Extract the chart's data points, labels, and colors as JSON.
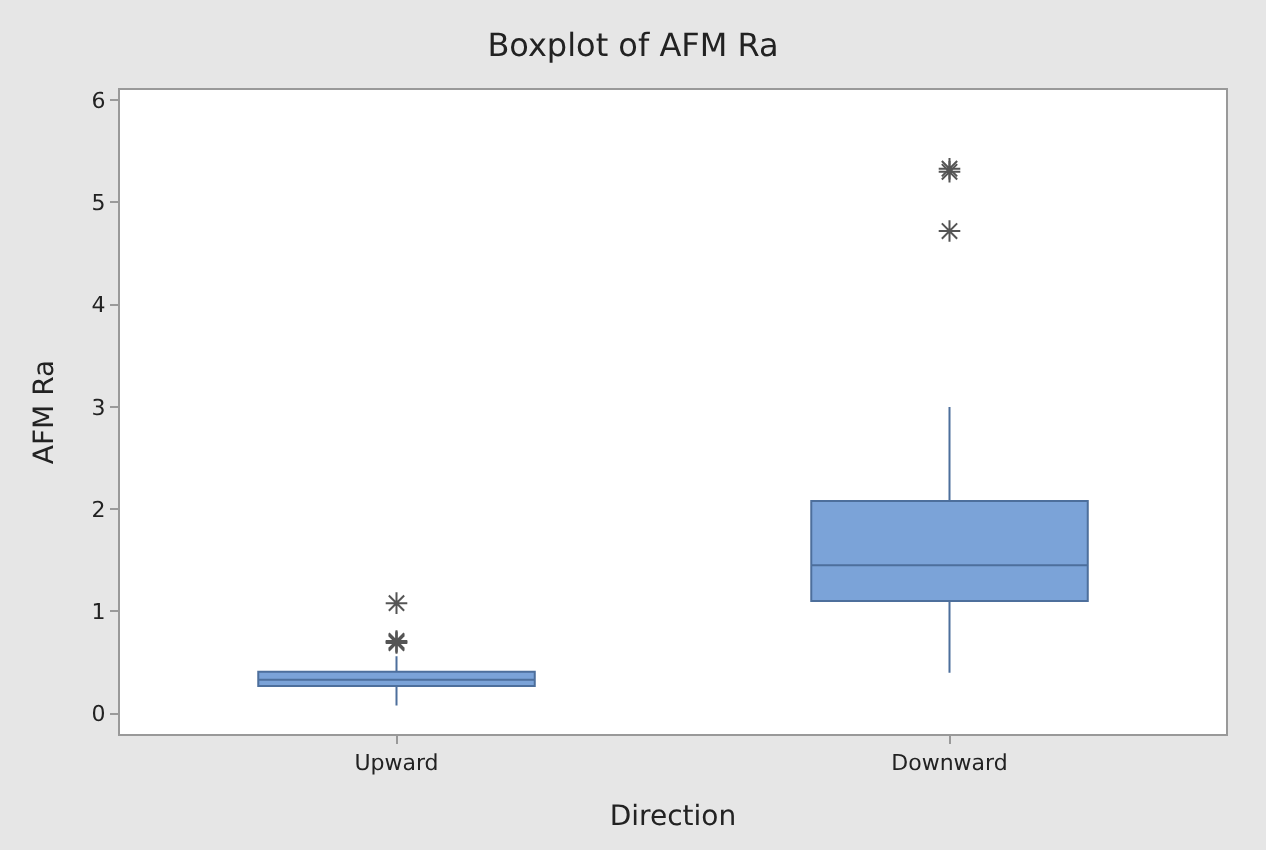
{
  "chart_data": {
    "type": "box",
    "title": "Boxplot of AFM Ra",
    "xlabel": "Direction",
    "ylabel": "AFM Ra",
    "categories": [
      "Upward",
      "Downward"
    ],
    "boxes": [
      {
        "low": 0.08,
        "q1": 0.27,
        "median": 0.33,
        "q3": 0.41,
        "high": 0.56,
        "outliers": [
          0.69,
          0.7,
          0.71,
          1.08
        ]
      },
      {
        "low": 0.4,
        "q1": 1.1,
        "median": 1.45,
        "q3": 2.08,
        "high": 3.0,
        "outliers": [
          4.72,
          5.3,
          5.33
        ]
      }
    ],
    "color": "#7ba3d8",
    "ylim": [
      -0.2,
      6.1
    ],
    "yticks": [
      0,
      1,
      2,
      3,
      4,
      5,
      6
    ],
    "marker": "star"
  }
}
